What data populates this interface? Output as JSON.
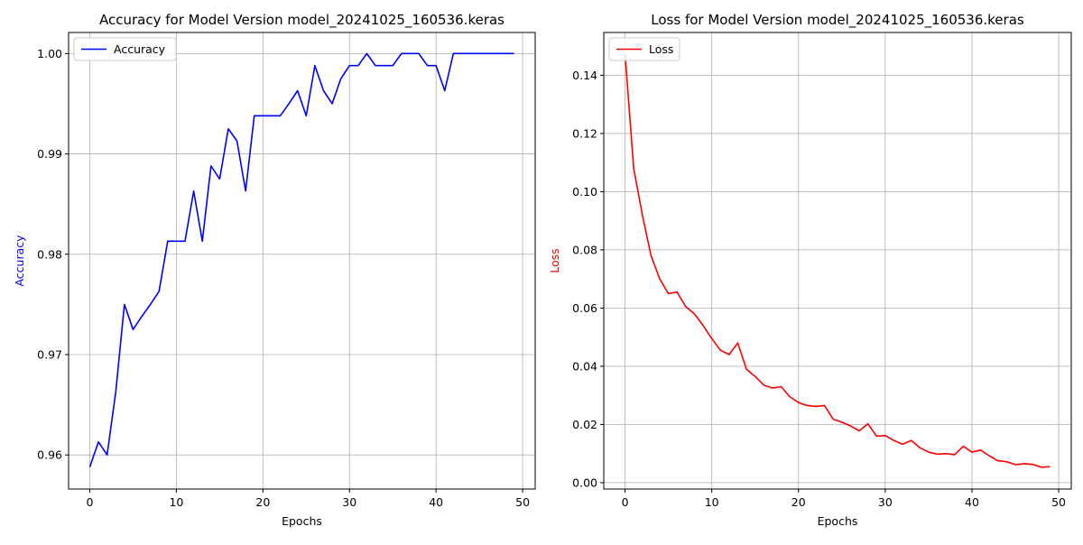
{
  "chart_data": [
    {
      "type": "line",
      "title": "Accuracy for Model Version model_20241025_160536.keras",
      "xlabel": "Epochs",
      "ylabel": "Accuracy",
      "ylabel_color": "#0000ff",
      "xlim": [
        -2.45,
        51.45
      ],
      "ylim": [
        0.9566,
        1.0021
      ],
      "xticks": [
        0,
        10,
        20,
        30,
        40,
        50
      ],
      "xtick_labels": [
        "0",
        "10",
        "20",
        "30",
        "40",
        "50"
      ],
      "yticks": [
        0.96,
        0.97,
        0.98,
        0.99,
        1.0
      ],
      "ytick_labels": [
        "0.96",
        "0.97",
        "0.98",
        "0.99",
        "1.00"
      ],
      "grid": true,
      "legend_position": "upper left",
      "series": [
        {
          "name": "Accuracy",
          "color": "#0000ff",
          "x": [
            0,
            1,
            2,
            3,
            4,
            5,
            6,
            7,
            8,
            9,
            10,
            11,
            12,
            13,
            14,
            15,
            16,
            17,
            18,
            19,
            20,
            21,
            22,
            23,
            24,
            25,
            26,
            27,
            28,
            29,
            30,
            31,
            32,
            33,
            34,
            35,
            36,
            37,
            38,
            39,
            40,
            41,
            42,
            43,
            44,
            45,
            46,
            47,
            48,
            49
          ],
          "y": [
            0.9588,
            0.9613,
            0.96,
            0.9663,
            0.975,
            0.9725,
            0.9738,
            0.975,
            0.9763,
            0.9813,
            0.9813,
            0.9813,
            0.9863,
            0.9813,
            0.9888,
            0.9875,
            0.9925,
            0.9913,
            0.9863,
            0.9938,
            0.9938,
            0.9938,
            0.9938,
            0.995,
            0.9963,
            0.9938,
            0.9988,
            0.9963,
            0.995,
            0.9975,
            0.9988,
            0.9988,
            1.0,
            0.9988,
            0.9988,
            0.9988,
            1.0,
            1.0,
            1.0,
            0.9988,
            0.9988,
            0.9963,
            1.0,
            1.0,
            1.0,
            1.0,
            1.0,
            1.0,
            1.0,
            1.0
          ]
        }
      ]
    },
    {
      "type": "line",
      "title": "Loss for Model Version model_20241025_160536.keras",
      "xlabel": "Epochs",
      "ylabel": "Loss",
      "ylabel_color": "#ff0000",
      "xlim": [
        -2.45,
        51.45
      ],
      "ylim": [
        -0.0022,
        0.1547
      ],
      "xticks": [
        0,
        10,
        20,
        30,
        40,
        50
      ],
      "xtick_labels": [
        "0",
        "10",
        "20",
        "30",
        "40",
        "50"
      ],
      "yticks": [
        0.0,
        0.02,
        0.04,
        0.06,
        0.08,
        0.1,
        0.12,
        0.14
      ],
      "ytick_labels": [
        "0.00",
        "0.02",
        "0.04",
        "0.06",
        "0.08",
        "0.10",
        "0.12",
        "0.14"
      ],
      "grid": true,
      "legend_position": "upper left",
      "series": [
        {
          "name": "Loss",
          "color": "#ff0000",
          "x": [
            0,
            1,
            2,
            3,
            4,
            5,
            6,
            7,
            8,
            9,
            10,
            11,
            12,
            13,
            14,
            15,
            16,
            17,
            18,
            19,
            20,
            21,
            22,
            23,
            24,
            25,
            26,
            27,
            28,
            29,
            30,
            31,
            32,
            33,
            34,
            35,
            36,
            37,
            38,
            39,
            40,
            41,
            42,
            43,
            44,
            45,
            46,
            47,
            48,
            49
          ],
          "y": [
            0.1475,
            0.108,
            0.092,
            0.078,
            0.07,
            0.065,
            0.0655,
            0.0605,
            0.058,
            0.054,
            0.0495,
            0.0455,
            0.044,
            0.048,
            0.039,
            0.0365,
            0.0335,
            0.0325,
            0.033,
            0.0295,
            0.0275,
            0.0265,
            0.0262,
            0.0265,
            0.0218,
            0.0208,
            0.0195,
            0.0178,
            0.0202,
            0.016,
            0.0162,
            0.0145,
            0.0132,
            0.0145,
            0.012,
            0.0105,
            0.0098,
            0.01,
            0.0096,
            0.0125,
            0.0105,
            0.0112,
            0.0092,
            0.0075,
            0.0072,
            0.0062,
            0.0065,
            0.0063,
            0.0053,
            0.0055
          ]
        }
      ]
    }
  ]
}
